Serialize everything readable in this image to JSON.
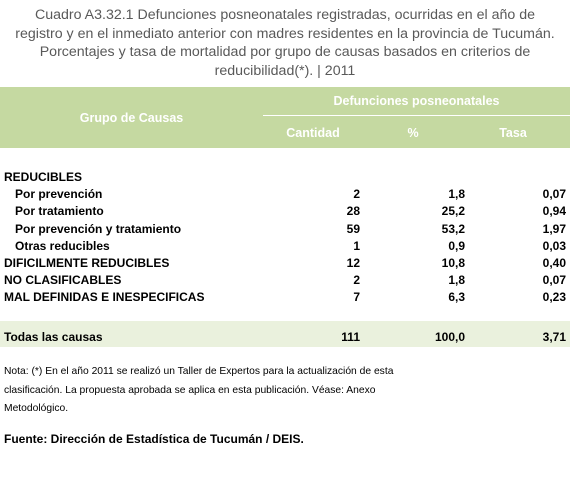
{
  "title_lines": [
    "Cuadro A3.32.1 Defunciones posneonatales registradas, ocurridas en el año de",
    "registro y en el inmediato anterior con madres residentes en la provincia de Tucumán.",
    "Porcentajes y tasa de mortalidad por grupo de causas basados en criterios de",
    "reducibilidad(*). | 2011"
  ],
  "header": {
    "group": "Grupo de Causas",
    "span": "Defunciones posneonatales",
    "qty": "Cantidad",
    "pct": "%",
    "rate": "Tasa"
  },
  "rows": [
    {
      "label": "REDUCIBLES",
      "indent": false,
      "qty": "",
      "pct": "",
      "rate": ""
    },
    {
      "label": "Por prevención",
      "indent": true,
      "qty": "2",
      "pct": "1,8",
      "rate": "0,07"
    },
    {
      "label": "Por tratamiento",
      "indent": true,
      "qty": "28",
      "pct": "25,2",
      "rate": "0,94"
    },
    {
      "label": "Por prevención y tratamiento",
      "indent": true,
      "qty": "59",
      "pct": "53,2",
      "rate": "1,97"
    },
    {
      "label": "Otras reducibles",
      "indent": true,
      "qty": "1",
      "pct": "0,9",
      "rate": "0,03"
    },
    {
      "label": "DIFICILMENTE REDUCIBLES",
      "indent": false,
      "qty": "12",
      "pct": "10,8",
      "rate": "0,40"
    },
    {
      "label": "NO CLASIFICABLES",
      "indent": false,
      "qty": "2",
      "pct": "1,8",
      "rate": "0,07"
    },
    {
      "label": "MAL DEFINIDAS E INESPECIFICAS",
      "indent": false,
      "qty": "7",
      "pct": "6,3",
      "rate": "0,23"
    }
  ],
  "total": {
    "label": "Todas las causas",
    "qty": "111",
    "pct": "100,0",
    "rate": "3,71"
  },
  "note_lines": [
    "Nota: (*) En el año 2011 se realizó un Taller de Expertos para la actualización de esta",
    "clasificación. La propuesta aprobada se aplica en esta publicación. Véase: Anexo",
    "Metodológico."
  ],
  "source": "Fuente: Dirección de Estadística de Tucumán / DEIS.",
  "colors": {
    "header_bg": "#c5d9a1",
    "total_bg": "#eaf1dd",
    "title_text": "#595959"
  }
}
